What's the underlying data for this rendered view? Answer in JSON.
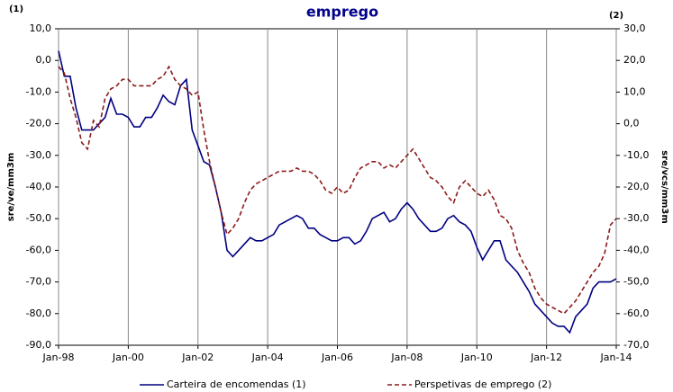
{
  "chart_data": {
    "type": "line",
    "title": "emprego",
    "axis_marker_left": "(1)",
    "axis_marker_right": "(2)",
    "ylabel": "sre/ve/mm3m",
    "y2label": "sre/vcs/mm3m",
    "x": [
      "1998-01",
      "1998-03",
      "1998-05",
      "1998-07",
      "1998-09",
      "1998-11",
      "1999-01",
      "1999-03",
      "1999-05",
      "1999-07",
      "1999-09",
      "1999-11",
      "2000-01",
      "2000-03",
      "2000-05",
      "2000-07",
      "2000-09",
      "2000-11",
      "2001-01",
      "2001-03",
      "2001-05",
      "2001-07",
      "2001-09",
      "2001-11",
      "2002-01",
      "2002-03",
      "2002-05",
      "2002-07",
      "2002-09",
      "2002-11",
      "2003-01",
      "2003-03",
      "2003-05",
      "2003-07",
      "2003-09",
      "2003-11",
      "2004-01",
      "2004-03",
      "2004-05",
      "2004-07",
      "2004-09",
      "2004-11",
      "2005-01",
      "2005-03",
      "2005-05",
      "2005-07",
      "2005-09",
      "2005-11",
      "2006-01",
      "2006-03",
      "2006-05",
      "2006-07",
      "2006-09",
      "2006-11",
      "2007-01",
      "2007-03",
      "2007-05",
      "2007-07",
      "2007-09",
      "2007-11",
      "2008-01",
      "2008-03",
      "2008-05",
      "2008-07",
      "2008-09",
      "2008-11",
      "2009-01",
      "2009-03",
      "2009-05",
      "2009-07",
      "2009-09",
      "2009-11",
      "2010-01",
      "2010-03",
      "2010-05",
      "2010-07",
      "2010-09",
      "2010-11",
      "2011-01",
      "2011-03",
      "2011-05",
      "2011-07",
      "2011-09",
      "2011-11",
      "2012-01",
      "2012-03",
      "2012-05",
      "2012-07",
      "2012-09",
      "2012-11",
      "2013-01",
      "2013-03",
      "2013-05",
      "2013-07",
      "2013-09",
      "2013-11",
      "2014-01"
    ],
    "xlim": [
      "1998-01",
      "2014-01"
    ],
    "xticks": [
      {
        "value": "1998-01",
        "label": "Jan-98"
      },
      {
        "value": "2000-01",
        "label": "Jan-00"
      },
      {
        "value": "2002-01",
        "label": "Jan-02"
      },
      {
        "value": "2004-01",
        "label": "Jan-04"
      },
      {
        "value": "2006-01",
        "label": "Jan-06"
      },
      {
        "value": "2008-01",
        "label": "Jan-08"
      },
      {
        "value": "2010-01",
        "label": "Jan-10"
      },
      {
        "value": "2012-01",
        "label": "Jan-12"
      },
      {
        "value": "2014-01",
        "label": "Jan-14"
      }
    ],
    "ylim": [
      -90,
      10
    ],
    "yticks": [
      {
        "value": -90,
        "label": "-90,0"
      },
      {
        "value": -80,
        "label": "-80,0"
      },
      {
        "value": -70,
        "label": "-70,0"
      },
      {
        "value": -60,
        "label": "-60,0"
      },
      {
        "value": -50,
        "label": "-50,0"
      },
      {
        "value": -40,
        "label": "-40,0"
      },
      {
        "value": -30,
        "label": "-30,0"
      },
      {
        "value": -20,
        "label": "-20,0"
      },
      {
        "value": -10,
        "label": "-10,0"
      },
      {
        "value": 0,
        "label": "0,0"
      },
      {
        "value": 10,
        "label": "10,0"
      }
    ],
    "y2lim": [
      -70,
      30
    ],
    "y2ticks": [
      {
        "value": -70,
        "label": "-70,0"
      },
      {
        "value": -60,
        "label": "-60,0"
      },
      {
        "value": -50,
        "label": "-50,0"
      },
      {
        "value": -40,
        "label": "-40,0"
      },
      {
        "value": -30,
        "label": "-30,0"
      },
      {
        "value": -20,
        "label": "-20,0"
      },
      {
        "value": -10,
        "label": "-10,0"
      },
      {
        "value": 0,
        "label": "0,0"
      },
      {
        "value": 10,
        "label": "10,0"
      },
      {
        "value": 20,
        "label": "20,0"
      },
      {
        "value": 30,
        "label": "30,0"
      }
    ],
    "grid_x": true,
    "series": [
      {
        "name": "Carteira de encomendas (1)",
        "color": "#000080",
        "dash": false,
        "values": [
          3,
          -5,
          -5,
          -15,
          -22,
          -22,
          -22,
          -20,
          -18,
          -12,
          -17,
          -17,
          -18,
          -21,
          -21,
          -18,
          -18,
          -15,
          -11,
          -13,
          -14,
          -8,
          -6,
          -22,
          -27,
          -32,
          -33,
          -40,
          -48,
          -60,
          -62,
          -60,
          -58,
          -56,
          -57,
          -57,
          -56,
          -55,
          -52,
          -51,
          -50,
          -49,
          -50,
          -53,
          -53,
          -55,
          -56,
          -57,
          -57,
          -56,
          -56,
          -58,
          -57,
          -54,
          -50,
          -49,
          -48,
          -51,
          -50,
          -47,
          -45,
          -47,
          -50,
          -52,
          -54,
          -54,
          -53,
          -50,
          -49,
          -51,
          -52,
          -54,
          -59,
          -63,
          -60,
          -57,
          -57,
          -63,
          -65,
          -67,
          -70,
          -73,
          -77,
          -79,
          -81,
          -83,
          -84,
          -84,
          -86,
          -81,
          -79,
          -77,
          -72,
          -70,
          -70,
          -70,
          -69
        ]
      },
      {
        "name": "Perspetivas de emprego (2)",
        "color": "#8b1a1a",
        "dash": true,
        "axis": "y2",
        "values": [
          18,
          16,
          8,
          2,
          -6,
          -8,
          1,
          -1,
          8,
          11,
          12,
          14,
          14,
          12,
          12,
          12,
          12,
          14,
          15,
          18,
          14,
          12,
          11,
          9,
          10,
          -2,
          -12,
          -20,
          -28,
          -35,
          -33,
          -30,
          -25,
          -21,
          -19,
          -18,
          -17,
          -16,
          -15,
          -15,
          -15,
          -14,
          -15,
          -15,
          -16,
          -18,
          -21,
          -22,
          -20,
          -22,
          -21,
          -17,
          -14,
          -13,
          -12,
          -12,
          -14,
          -13,
          -14,
          -12,
          -10,
          -8,
          -11,
          -14,
          -17,
          -18,
          -20,
          -23,
          -25,
          -20,
          -18,
          -20,
          -22,
          -23,
          -21,
          -24,
          -29,
          -30,
          -33,
          -40,
          -44,
          -47,
          -52,
          -55,
          -57,
          -58,
          -59,
          -60,
          -58,
          -56,
          -53,
          -50,
          -47,
          -45,
          -41,
          -32,
          -30
        ]
      }
    ]
  }
}
